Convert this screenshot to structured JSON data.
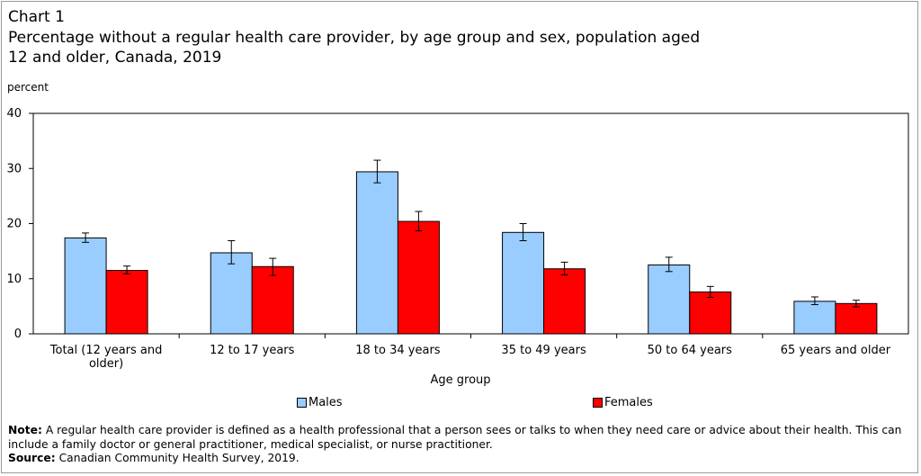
{
  "chart_label": "Chart 1",
  "chart_data": {
    "type": "bar",
    "title": "Percentage without a regular health care provider, by age group and sex, population aged 12 and older, Canada, 2019",
    "ylabel": "percent",
    "xlabel": "Age group",
    "ylim": [
      0,
      40
    ],
    "yticks": [
      0,
      10,
      20,
      30,
      40
    ],
    "categories": [
      "Total (12 years and older)",
      "12 to 17 years",
      "18 to 34 years",
      "35 to 49 years",
      "50 to 64 years",
      "65 years and older"
    ],
    "series": [
      {
        "name": "Males",
        "color": "#99ccff",
        "values": [
          17.4,
          14.7,
          29.4,
          18.4,
          12.5,
          5.9
        ],
        "error_low": [
          16.6,
          12.7,
          27.4,
          16.9,
          11.3,
          5.3
        ],
        "error_high": [
          18.3,
          16.9,
          31.5,
          20.0,
          13.9,
          6.7
        ]
      },
      {
        "name": "Females",
        "color": "#ff0000",
        "values": [
          11.5,
          12.2,
          20.4,
          11.8,
          7.6,
          5.5
        ],
        "error_low": [
          10.9,
          10.6,
          18.7,
          10.7,
          6.6,
          4.9
        ],
        "error_high": [
          12.3,
          13.7,
          22.2,
          13.0,
          8.6,
          6.1
        ]
      }
    ],
    "legend_position": "bottom",
    "grid": false
  },
  "note_label": "Note:",
  "note_text": "A regular health care provider is defined as a health professional that a person sees or talks to when they need care or advice about their health. This can include a family doctor or general practitioner, medical specialist, or nurse practitioner.",
  "source_label": "Source:",
  "source_text": "Canadian Community Health Survey, 2019."
}
